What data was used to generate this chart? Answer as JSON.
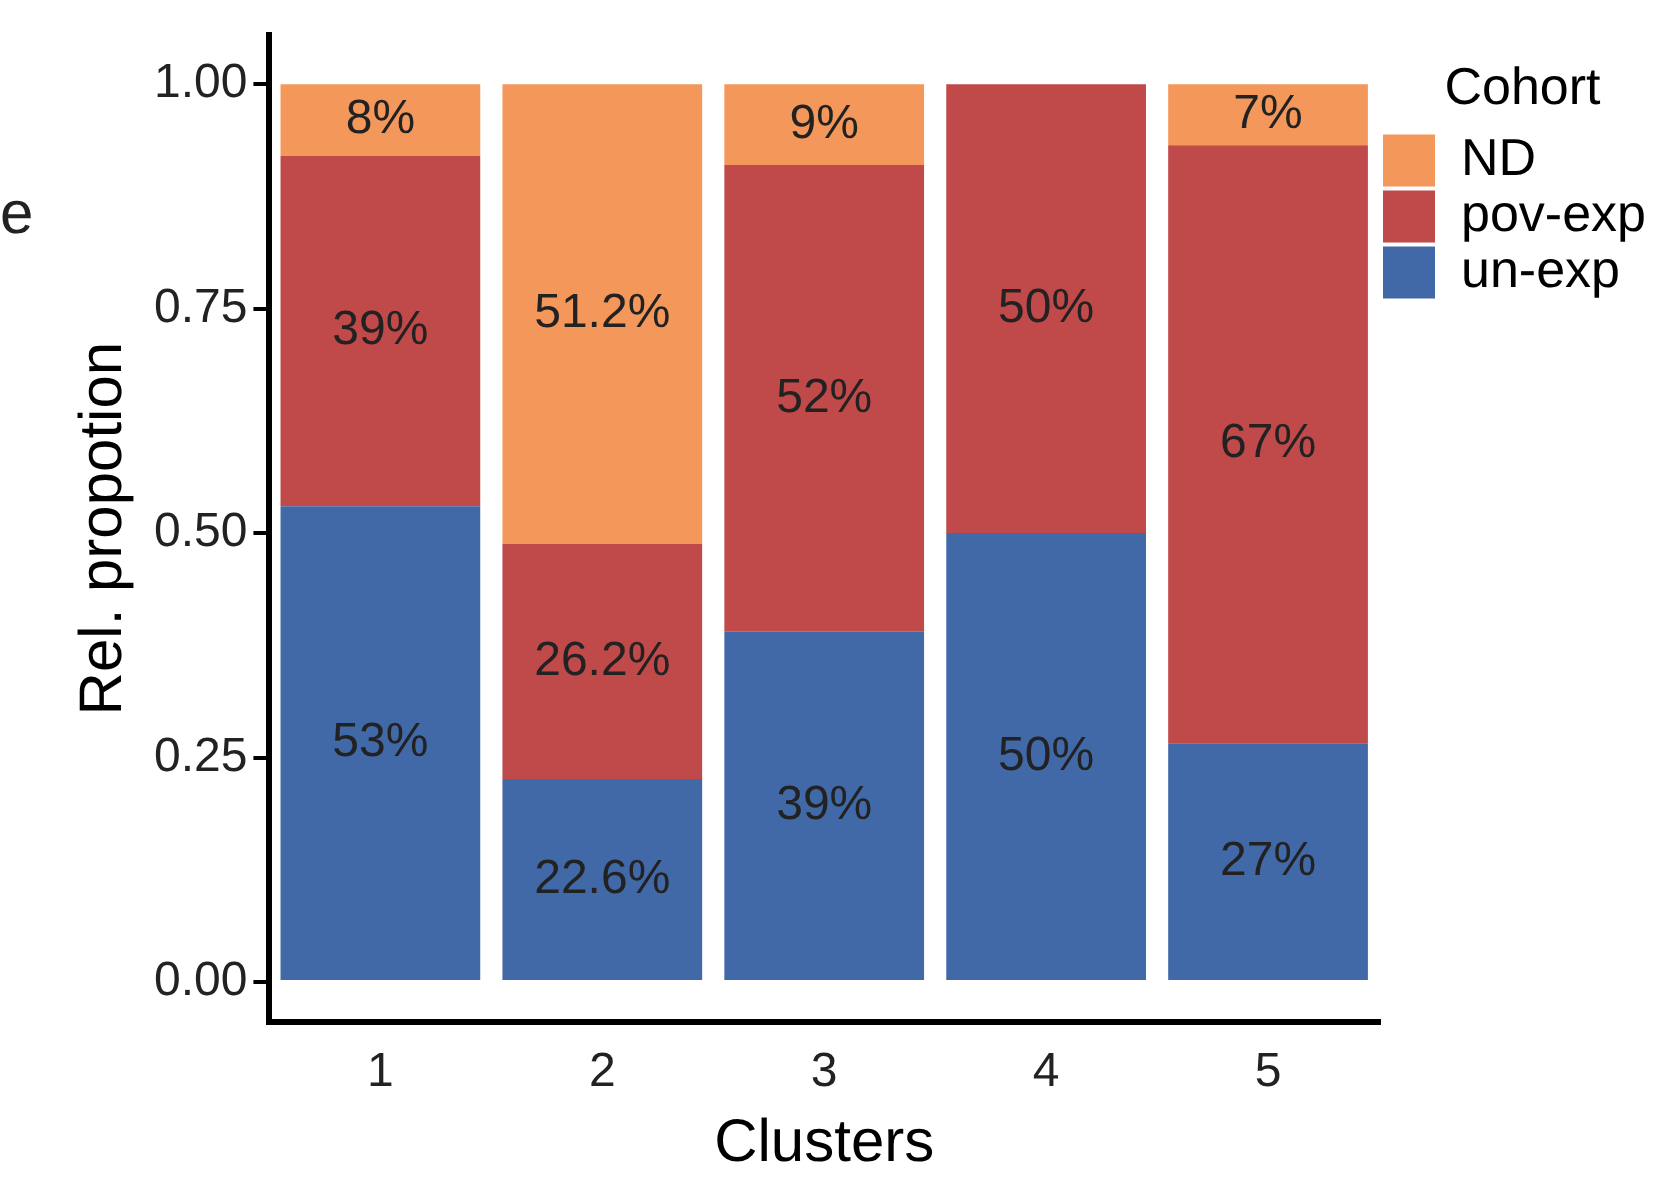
{
  "chart_data": {
    "type": "bar",
    "stacked": true,
    "xlabel": "Clusters",
    "ylabel": "Rel. propotion",
    "legend_title": "Cohort",
    "legend": "right",
    "grid": false,
    "annotations": [
      "e"
    ],
    "categories": [
      "1",
      "2",
      "3",
      "4",
      "5"
    ],
    "ylim": [
      -0.045,
      1.055
    ],
    "yticks": [
      {
        "value": 0,
        "label": "0.00"
      },
      {
        "value": 0.25,
        "label": "0.25"
      },
      {
        "value": 0.5,
        "label": "0.50"
      },
      {
        "value": 0.75,
        "label": "0.75"
      },
      {
        "value": 1,
        "label": "1.00"
      }
    ],
    "series": [
      {
        "name": "un-exp",
        "color": "#4169a8",
        "values": [
          0.53,
          0.226,
          0.39,
          0.5,
          0.266
        ],
        "value_labels": [
          "53%",
          "22.6%",
          "39%",
          "50%",
          "27%"
        ]
      },
      {
        "name": "pov-exp",
        "color": "#c0494a",
        "values": [
          0.39,
          0.262,
          0.52,
          0.5,
          0.666
        ],
        "value_labels": [
          "39%",
          "26.2%",
          "52%",
          "50%",
          "67%"
        ]
      },
      {
        "name": "ND",
        "color": "#f4975a",
        "values": [
          0.08,
          0.512,
          0.09,
          0,
          0.068
        ],
        "value_labels": [
          "8%",
          "51.2%",
          "9%",
          null,
          "7%"
        ]
      }
    ]
  }
}
